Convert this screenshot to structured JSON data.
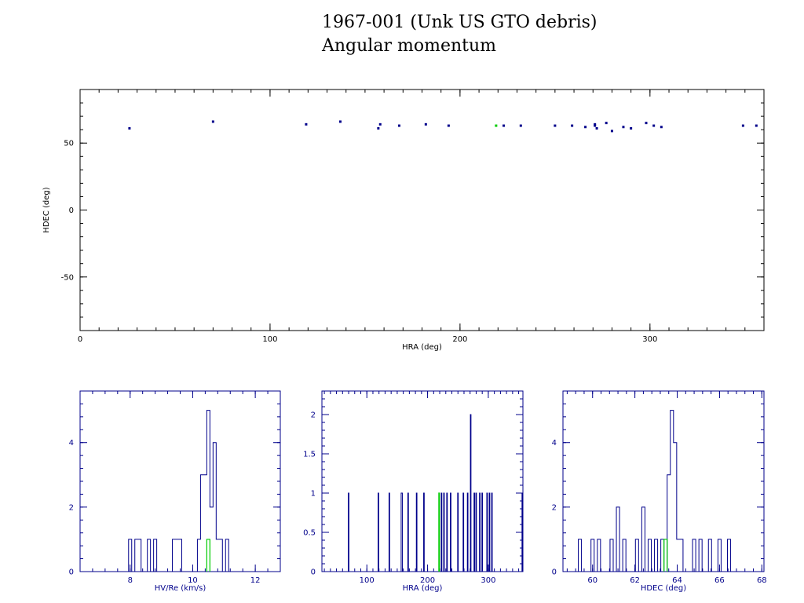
{
  "title_lines": [
    "1967-001 (Unk US GTO debris)",
    "Angular momentum"
  ],
  "colors": {
    "axes": "#000000",
    "points": "#00008b",
    "highlight": "#00cc00",
    "hist": "#00008b",
    "hist_axes": "#00008b"
  },
  "chart_data": [
    {
      "type": "scatter",
      "xlabel": "HRA (deg)",
      "ylabel": "HDEC (deg)",
      "xlim": [
        0,
        360
      ],
      "ylim": [
        -90,
        90
      ],
      "xticks": [
        0,
        100,
        200,
        300
      ],
      "yticks": [
        -50,
        0,
        50
      ],
      "points": [
        [
          26,
          61
        ],
        [
          70,
          66
        ],
        [
          119,
          64
        ],
        [
          137,
          66
        ],
        [
          157,
          61
        ],
        [
          158,
          64
        ],
        [
          168,
          63
        ],
        [
          182,
          64
        ],
        [
          194,
          63
        ],
        [
          223,
          63
        ],
        [
          232,
          63
        ],
        [
          250,
          63
        ],
        [
          259,
          63
        ],
        [
          266,
          62
        ],
        [
          271,
          64
        ],
        [
          271,
          63
        ],
        [
          272,
          61
        ],
        [
          277,
          65
        ],
        [
          280,
          59
        ],
        [
          286,
          62
        ],
        [
          290,
          61
        ],
        [
          298,
          65
        ],
        [
          302,
          63
        ],
        [
          306,
          62
        ],
        [
          349,
          63
        ],
        [
          356,
          63
        ]
      ],
      "highlight": [
        219,
        63
      ]
    },
    {
      "type": "histogram",
      "xlabel": "HV/Re (km/s)",
      "xlim": [
        6.4,
        12.8
      ],
      "ylim": [
        0,
        5.6
      ],
      "xticks": [
        8,
        10,
        12
      ],
      "yticks": [
        0,
        2,
        4
      ],
      "bin_width": 0.1,
      "bins": [
        [
          8.0,
          1
        ],
        [
          8.2,
          1
        ],
        [
          8.3,
          1
        ],
        [
          8.6,
          1
        ],
        [
          8.8,
          1
        ],
        [
          9.4,
          1
        ],
        [
          9.5,
          1
        ],
        [
          9.6,
          1
        ],
        [
          10.2,
          1
        ],
        [
          10.3,
          3
        ],
        [
          10.4,
          3
        ],
        [
          10.5,
          5
        ],
        [
          10.6,
          2
        ],
        [
          10.7,
          4
        ],
        [
          10.8,
          1
        ],
        [
          10.9,
          1
        ],
        [
          11.1,
          1
        ]
      ],
      "highlight": 10.5
    },
    {
      "type": "histogram",
      "xlabel": "HRA (deg)",
      "xlim": [
        26,
        357
      ],
      "ylim": [
        0,
        2.3
      ],
      "xticks": [
        100,
        200,
        300
      ],
      "yticks": [
        0,
        0.5,
        1,
        1.5,
        2
      ],
      "ytick_labels": [
        "0",
        "0.5",
        "1",
        "1.5",
        "2"
      ],
      "bin_width": 1,
      "bins": [
        [
          70,
          1
        ],
        [
          119,
          1
        ],
        [
          137,
          1
        ],
        [
          157,
          1
        ],
        [
          158,
          1
        ],
        [
          168,
          1
        ],
        [
          182,
          1
        ],
        [
          194,
          1
        ],
        [
          223,
          1
        ],
        [
          227,
          1
        ],
        [
          232,
          1
        ],
        [
          238,
          1
        ],
        [
          250,
          1
        ],
        [
          259,
          1
        ],
        [
          266,
          1
        ],
        [
          271,
          2
        ],
        [
          277,
          1
        ],
        [
          280,
          1
        ],
        [
          286,
          1
        ],
        [
          290,
          1
        ],
        [
          298,
          1
        ],
        [
          302,
          1
        ],
        [
          306,
          1
        ],
        [
          356,
          1
        ]
      ],
      "highlight": 219
    },
    {
      "type": "histogram",
      "xlabel": "HDEC (deg)",
      "xlim": [
        58.6,
        68.1
      ],
      "ylim": [
        0,
        5.6
      ],
      "xticks": [
        60,
        62,
        64,
        66,
        68
      ],
      "yticks": [
        0,
        2,
        4
      ],
      "bin_width": 0.15,
      "bins": [
        [
          59.4,
          1
        ],
        [
          60.0,
          1
        ],
        [
          60.3,
          1
        ],
        [
          60.9,
          1
        ],
        [
          61.2,
          2
        ],
        [
          61.5,
          1
        ],
        [
          62.1,
          1
        ],
        [
          62.4,
          2
        ],
        [
          62.7,
          1
        ],
        [
          63.0,
          1
        ],
        [
          63.3,
          1
        ],
        [
          63.6,
          3
        ],
        [
          63.75,
          5
        ],
        [
          63.9,
          4
        ],
        [
          64.05,
          1
        ],
        [
          64.2,
          1
        ],
        [
          64.8,
          1
        ],
        [
          65.1,
          1
        ],
        [
          65.55,
          1
        ],
        [
          66.0,
          1
        ],
        [
          66.45,
          1
        ]
      ],
      "highlight": 63.45
    }
  ]
}
